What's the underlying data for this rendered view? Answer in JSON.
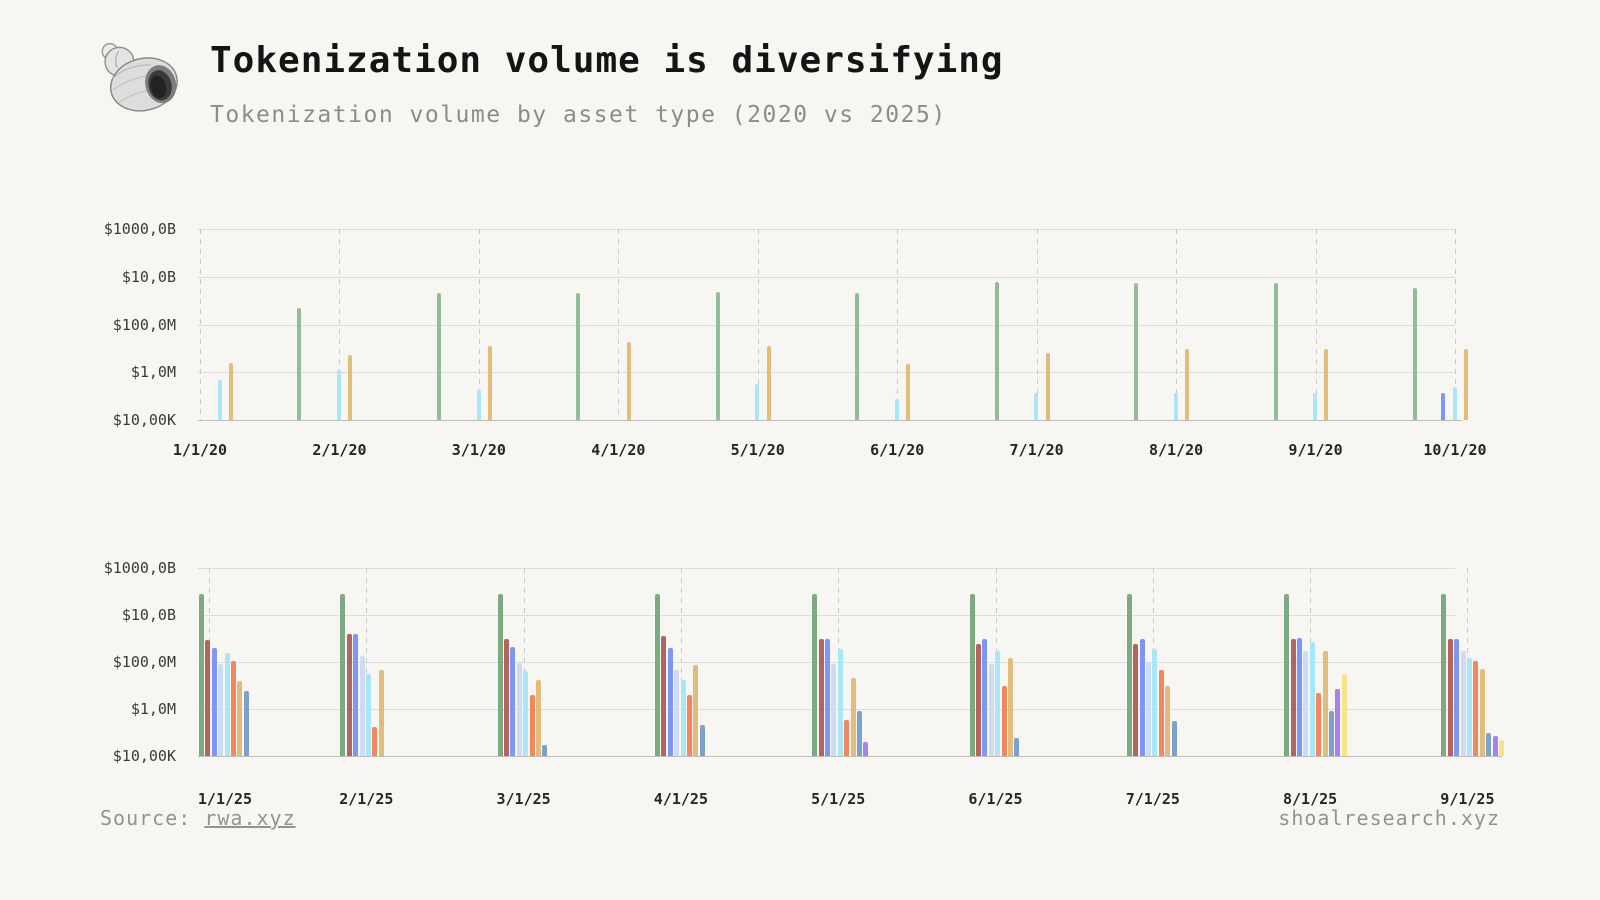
{
  "header": {
    "title": "Tokenization volume is diversifying",
    "subtitle": "Tokenization volume by asset type (2020 vs 2025)"
  },
  "footer": {
    "source_label": "Source:",
    "source_link": "rwa.xyz",
    "site": "shoalresearch.xyz"
  },
  "chart_data": [
    {
      "type": "bar",
      "panel": "2020",
      "y_axis": {
        "scale": "log",
        "ticks": [
          "$1000,0B",
          "$10,0B",
          "$100,0M",
          "$1,0M",
          "$10,00K"
        ],
        "tick_values": [
          1000000000000,
          10000000000,
          100000000,
          1000000,
          10000
        ],
        "min": 10000,
        "max": 1000000000000,
        "grid": true
      },
      "categories": [
        "1/1/20",
        "2/1/20",
        "3/1/20",
        "4/1/20",
        "5/1/20",
        "6/1/20",
        "7/1/20",
        "8/1/20",
        "9/1/20",
        "10/1/20"
      ],
      "series": [
        {
          "name": "green",
          "color": "#93bd99",
          "values": [
            null,
            500000000,
            2000000000,
            2000000000,
            2300000000,
            2000000000,
            6000000000,
            5500000000,
            5300000000,
            3500000000
          ]
        },
        {
          "name": "periwinkle-blue",
          "color": "#7d97f2",
          "values": [
            null,
            null,
            null,
            null,
            null,
            null,
            null,
            null,
            null,
            130000
          ]
        },
        {
          "name": "sky-blue",
          "color": "#a9e6f7",
          "values": [
            480000,
            1200000,
            180000,
            null,
            330000,
            75000,
            140000,
            140000,
            130000,
            240000
          ]
        },
        {
          "name": "gold",
          "color": "#e2bc7d",
          "values": [
            2400000,
            5500000,
            13000000,
            18000000,
            12000000,
            2300000,
            6200000,
            9500000,
            9500000,
            9000000
          ]
        }
      ]
    },
    {
      "type": "bar",
      "panel": "2025",
      "y_axis": {
        "scale": "log",
        "ticks": [
          "$1000,0B",
          "$10,0B",
          "$100,0M",
          "$1,0M",
          "$10,00K"
        ],
        "tick_values": [
          1000000000000,
          10000000000,
          100000000,
          1000000,
          10000
        ],
        "min": 10000,
        "max": 1000000000000,
        "grid": true
      },
      "categories": [
        "1/1/25",
        "2/1/25",
        "3/1/25",
        "4/1/25",
        "5/1/25",
        "6/1/25",
        "7/1/25",
        "8/1/25",
        "9/1/25"
      ],
      "series": [
        {
          "name": "green",
          "color": "#7cab81",
          "values": [
            80000000000,
            80000000000,
            80000000000,
            80000000000,
            80000000000,
            80000000000,
            80000000000,
            80000000000,
            80000000000
          ]
        },
        {
          "name": "maroon",
          "color": "#b4635e",
          "values": [
            900000000,
            1500000000,
            1000000000,
            1300000000,
            1000000000,
            600000000,
            600000000,
            1000000000,
            1000000000
          ]
        },
        {
          "name": "periwinkle-blue",
          "color": "#7d97f2",
          "values": [
            400000000,
            1500000000,
            450000000,
            380000000,
            1000000000,
            1000000000,
            1000000000,
            1100000000,
            1000000000
          ]
        },
        {
          "name": "pale-blue",
          "color": "#cddcf2",
          "values": [
            80000000,
            180000000,
            90000000,
            45000000,
            80000000,
            80000000,
            100000000,
            300000000,
            300000000
          ]
        },
        {
          "name": "sky-blue",
          "color": "#a9e6f7",
          "values": [
            250000000,
            30000000,
            40000000,
            17000000,
            350000000,
            300000000,
            350000000,
            700000000,
            150000000
          ]
        },
        {
          "name": "coral",
          "color": "#f1865f",
          "values": [
            110000000,
            180000,
            4000000,
            4000000,
            350000,
            10000000,
            45000000,
            5000000,
            110000000
          ]
        },
        {
          "name": "gold",
          "color": "#e2bc7d",
          "values": [
            15000000,
            45000000,
            18000000,
            75000000,
            20000000,
            150000000,
            10000000,
            280000000,
            50000000
          ]
        },
        {
          "name": "steel-blue",
          "color": "#7ba2c8",
          "values": [
            6000000,
            null,
            30000,
            200000,
            800000,
            60000,
            300000,
            800000,
            100000
          ]
        },
        {
          "name": "purple",
          "color": "#a782e8",
          "values": [
            null,
            null,
            null,
            null,
            40000,
            null,
            null,
            7000000,
            70000
          ]
        },
        {
          "name": "yellow",
          "color": "#f9e287",
          "values": [
            null,
            null,
            null,
            null,
            null,
            null,
            null,
            30000000,
            50000
          ]
        }
      ]
    }
  ]
}
